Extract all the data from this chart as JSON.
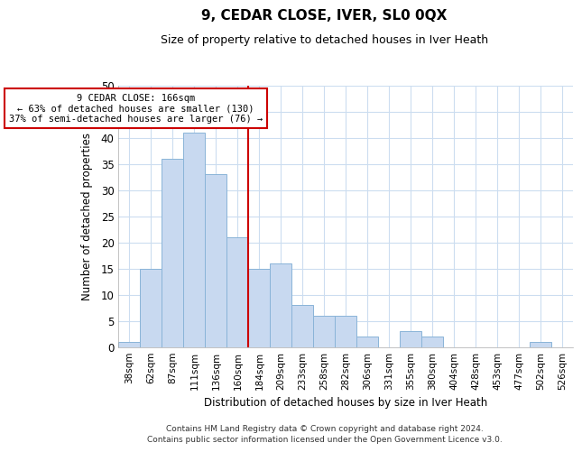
{
  "title": "9, CEDAR CLOSE, IVER, SL0 0QX",
  "subtitle": "Size of property relative to detached houses in Iver Heath",
  "xlabel": "Distribution of detached houses by size in Iver Heath",
  "ylabel": "Number of detached properties",
  "bar_labels": [
    "38sqm",
    "62sqm",
    "87sqm",
    "111sqm",
    "136sqm",
    "160sqm",
    "184sqm",
    "209sqm",
    "233sqm",
    "258sqm",
    "282sqm",
    "306sqm",
    "331sqm",
    "355sqm",
    "380sqm",
    "404sqm",
    "428sqm",
    "453sqm",
    "477sqm",
    "502sqm",
    "526sqm"
  ],
  "bar_values": [
    1,
    15,
    36,
    41,
    33,
    21,
    15,
    16,
    8,
    6,
    6,
    2,
    0,
    3,
    2,
    0,
    0,
    0,
    0,
    1,
    0
  ],
  "bar_color": "#c8d9f0",
  "bar_edge_color": "#8ab4d8",
  "reference_line_color": "#cc0000",
  "annotation_text": "9 CEDAR CLOSE: 166sqm\n← 63% of detached houses are smaller (130)\n37% of semi-detached houses are larger (76) →",
  "annotation_box_color": "#ffffff",
  "annotation_box_edge": "#cc0000",
  "ylim": [
    0,
    50
  ],
  "yticks": [
    0,
    5,
    10,
    15,
    20,
    25,
    30,
    35,
    40,
    45,
    50
  ],
  "footer1": "Contains HM Land Registry data © Crown copyright and database right 2024.",
  "footer2": "Contains public sector information licensed under the Open Government Licence v3.0.",
  "background_color": "#ffffff",
  "grid_color": "#ccddf0"
}
